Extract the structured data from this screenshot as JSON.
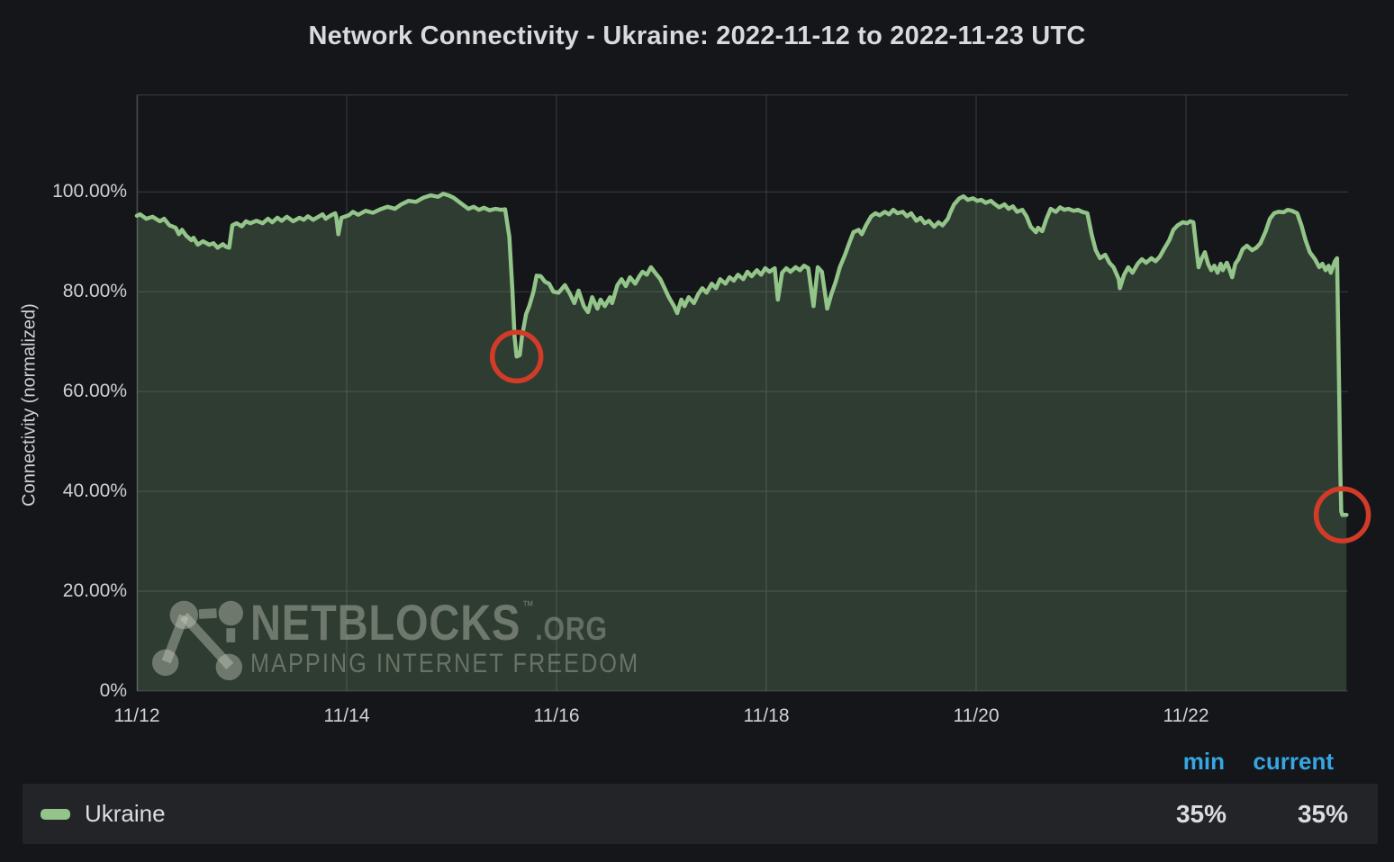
{
  "title": "Network Connectivity - Ukraine: 2022-11-12 to 2022-11-23 UTC",
  "colors": {
    "series_green": "#93c489",
    "annotation_red": "#d23b28",
    "legend_header_blue": "#36a6e4",
    "background": "#141619",
    "legend_row_bg": "#222427"
  },
  "watermark": {
    "brand": "NETBLOCKS",
    "tm": "TM",
    "suffix": ".ORG",
    "tagline": "MAPPING INTERNET FREEDOM",
    "icon": "network-nodes-icon"
  },
  "legend": {
    "col_min": "min",
    "col_current": "current",
    "series_name": "Ukraine",
    "min_value": "35%",
    "current_value": "35%"
  },
  "chart_data": {
    "type": "area",
    "title": "Network Connectivity - Ukraine: 2022-11-12 to 2022-11-23 UTC",
    "ylabel": "Connectivity (normalized)",
    "xlabel": "",
    "grid": true,
    "legend_position": "bottom",
    "y_axis_max": 119.5,
    "ylim": [
      0,
      119.5
    ],
    "x_range_days": [
      0,
      11.545
    ],
    "x_ticks": [
      {
        "day": 0,
        "label": "11/12"
      },
      {
        "day": 2,
        "label": "11/14"
      },
      {
        "day": 4,
        "label": "11/16"
      },
      {
        "day": 6,
        "label": "11/18"
      },
      {
        "day": 8,
        "label": "11/20"
      },
      {
        "day": 10,
        "label": "11/22"
      }
    ],
    "y_ticks": [
      {
        "pct": 100,
        "label": "100.00%"
      },
      {
        "pct": 80,
        "label": "80.00%"
      },
      {
        "pct": 60,
        "label": "60.00%"
      },
      {
        "pct": 40,
        "label": "40.00%"
      },
      {
        "pct": 20,
        "label": "20.00%"
      },
      {
        "pct": 0,
        "label": "0%"
      }
    ],
    "annotations": [
      {
        "type": "circle",
        "t": 3.62,
        "v": 67.0,
        "r": 27,
        "note": "dip to ~67%"
      },
      {
        "type": "circle",
        "t": 11.49,
        "v": 35.3,
        "r": 29,
        "note": "drop to 35%"
      }
    ],
    "series": [
      {
        "name": "Ukraine",
        "min": "35%",
        "current": "35%",
        "points": [
          [
            0,
            95.2
          ],
          [
            0.03,
            95.5
          ],
          [
            0.09,
            94.6
          ],
          [
            0.15,
            95
          ],
          [
            0.22,
            94.1
          ],
          [
            0.26,
            94.6
          ],
          [
            0.31,
            93.3
          ],
          [
            0.37,
            92.8
          ],
          [
            0.4,
            91.5
          ],
          [
            0.43,
            92.4
          ],
          [
            0.47,
            91.2
          ],
          [
            0.52,
            90.3
          ],
          [
            0.54,
            90.8
          ],
          [
            0.58,
            89.4
          ],
          [
            0.63,
            90.1
          ],
          [
            0.69,
            89.4
          ],
          [
            0.73,
            89.7
          ],
          [
            0.77,
            88.8
          ],
          [
            0.82,
            89.5
          ],
          [
            0.85,
            89
          ],
          [
            0.88,
            88.8
          ],
          [
            0.91,
            93.3
          ],
          [
            0.95,
            93.7
          ],
          [
            1,
            93.1
          ],
          [
            1.04,
            94.1
          ],
          [
            1.08,
            93.7
          ],
          [
            1.14,
            94.2
          ],
          [
            1.2,
            93.7
          ],
          [
            1.25,
            94.6
          ],
          [
            1.29,
            93.9
          ],
          [
            1.34,
            94.8
          ],
          [
            1.38,
            94.2
          ],
          [
            1.43,
            95
          ],
          [
            1.49,
            94.1
          ],
          [
            1.55,
            94.8
          ],
          [
            1.59,
            94.4
          ],
          [
            1.63,
            95.1
          ],
          [
            1.68,
            94.4
          ],
          [
            1.73,
            95
          ],
          [
            1.77,
            95.5
          ],
          [
            1.8,
            94.6
          ],
          [
            1.85,
            95.3
          ],
          [
            1.89,
            95.7
          ],
          [
            1.9,
            95
          ],
          [
            1.92,
            91.5
          ],
          [
            1.95,
            94.8
          ],
          [
            2.02,
            95.3
          ],
          [
            2.06,
            96
          ],
          [
            2.11,
            95.4
          ],
          [
            2.18,
            96.2
          ],
          [
            2.25,
            95.8
          ],
          [
            2.32,
            96.5
          ],
          [
            2.39,
            97
          ],
          [
            2.46,
            96.6
          ],
          [
            2.52,
            97.5
          ],
          [
            2.59,
            98.2
          ],
          [
            2.66,
            98
          ],
          [
            2.73,
            98.8
          ],
          [
            2.8,
            99.3
          ],
          [
            2.87,
            99
          ],
          [
            2.92,
            99.6
          ],
          [
            2.97,
            99.3
          ],
          [
            3.02,
            98.8
          ],
          [
            3.07,
            98
          ],
          [
            3.12,
            97.2
          ],
          [
            3.16,
            96.6
          ],
          [
            3.21,
            97
          ],
          [
            3.26,
            96.4
          ],
          [
            3.31,
            96.8
          ],
          [
            3.36,
            96.3
          ],
          [
            3.42,
            96.6
          ],
          [
            3.47,
            96.4
          ],
          [
            3.51,
            96.5
          ],
          [
            3.55,
            91
          ],
          [
            3.58,
            80
          ],
          [
            3.6,
            71
          ],
          [
            3.62,
            67
          ],
          [
            3.65,
            67.3
          ],
          [
            3.67,
            71
          ],
          [
            3.71,
            75.5
          ],
          [
            3.74,
            77.1
          ],
          [
            3.78,
            80
          ],
          [
            3.81,
            83.2
          ],
          [
            3.85,
            83.1
          ],
          [
            3.89,
            82
          ],
          [
            3.93,
            81.6
          ],
          [
            3.97,
            80
          ],
          [
            4.02,
            79.8
          ],
          [
            4.08,
            81.3
          ],
          [
            4.13,
            79.5
          ],
          [
            4.17,
            77.7
          ],
          [
            4.21,
            80.2
          ],
          [
            4.26,
            77.1
          ],
          [
            4.3,
            75.9
          ],
          [
            4.34,
            78.9
          ],
          [
            4.39,
            76.6
          ],
          [
            4.42,
            78.4
          ],
          [
            4.46,
            77.1
          ],
          [
            4.51,
            78.9
          ],
          [
            4.53,
            77.7
          ],
          [
            4.58,
            81.3
          ],
          [
            4.62,
            82.5
          ],
          [
            4.66,
            81.1
          ],
          [
            4.7,
            82.9
          ],
          [
            4.75,
            81.6
          ],
          [
            4.79,
            83.1
          ],
          [
            4.82,
            84
          ],
          [
            4.86,
            83.4
          ],
          [
            4.9,
            84.9
          ],
          [
            4.94,
            83.8
          ],
          [
            4.99,
            82.5
          ],
          [
            5.03,
            80.7
          ],
          [
            5.07,
            78.9
          ],
          [
            5.12,
            77.1
          ],
          [
            5.15,
            75.7
          ],
          [
            5.19,
            78.4
          ],
          [
            5.22,
            77.1
          ],
          [
            5.26,
            78.9
          ],
          [
            5.31,
            77.7
          ],
          [
            5.35,
            79.5
          ],
          [
            5.39,
            80.7
          ],
          [
            5.43,
            79.8
          ],
          [
            5.48,
            81.6
          ],
          [
            5.52,
            80.7
          ],
          [
            5.56,
            82.5
          ],
          [
            5.61,
            81.6
          ],
          [
            5.65,
            82.9
          ],
          [
            5.69,
            82.2
          ],
          [
            5.73,
            83.4
          ],
          [
            5.78,
            82.5
          ],
          [
            5.82,
            84
          ],
          [
            5.86,
            83.1
          ],
          [
            5.91,
            84.3
          ],
          [
            5.95,
            83.4
          ],
          [
            5.99,
            84.7
          ],
          [
            6.03,
            84
          ],
          [
            6.08,
            84.7
          ],
          [
            6.11,
            78.4
          ],
          [
            6.15,
            83.8
          ],
          [
            6.19,
            84.7
          ],
          [
            6.23,
            84
          ],
          [
            6.28,
            84.9
          ],
          [
            6.32,
            84.3
          ],
          [
            6.36,
            85.2
          ],
          [
            6.4,
            84.7
          ],
          [
            6.45,
            77.1
          ],
          [
            6.49,
            84.9
          ],
          [
            6.53,
            84
          ],
          [
            6.58,
            76.6
          ],
          [
            6.62,
            79.5
          ],
          [
            6.66,
            81.9
          ],
          [
            6.7,
            84.9
          ],
          [
            6.75,
            87.4
          ],
          [
            6.79,
            89.7
          ],
          [
            6.83,
            91.9
          ],
          [
            6.88,
            92.4
          ],
          [
            6.91,
            91.5
          ],
          [
            6.95,
            93.3
          ],
          [
            7,
            95.1
          ],
          [
            7.04,
            95.7
          ],
          [
            7.08,
            95.3
          ],
          [
            7.13,
            96
          ],
          [
            7.17,
            95.5
          ],
          [
            7.21,
            96.4
          ],
          [
            7.25,
            95.7
          ],
          [
            7.3,
            96
          ],
          [
            7.34,
            95.1
          ],
          [
            7.38,
            95.7
          ],
          [
            7.43,
            94.2
          ],
          [
            7.47,
            94.8
          ],
          [
            7.51,
            93.7
          ],
          [
            7.55,
            94.2
          ],
          [
            7.6,
            93
          ],
          [
            7.64,
            93.9
          ],
          [
            7.68,
            93.3
          ],
          [
            7.73,
            94.6
          ],
          [
            7.75,
            95.7
          ],
          [
            7.79,
            97.5
          ],
          [
            7.84,
            98.7
          ],
          [
            7.88,
            99.1
          ],
          [
            7.92,
            98.4
          ],
          [
            7.97,
            98.7
          ],
          [
            8.01,
            98.2
          ],
          [
            8.05,
            98.4
          ],
          [
            8.09,
            97.8
          ],
          [
            8.14,
            98.2
          ],
          [
            8.18,
            97.5
          ],
          [
            8.22,
            96.9
          ],
          [
            8.27,
            97.5
          ],
          [
            8.31,
            96.6
          ],
          [
            8.35,
            97.1
          ],
          [
            8.39,
            96
          ],
          [
            8.44,
            96.4
          ],
          [
            8.48,
            95.1
          ],
          [
            8.52,
            93
          ],
          [
            8.57,
            91.9
          ],
          [
            8.59,
            92.8
          ],
          [
            8.63,
            92.1
          ],
          [
            8.67,
            94.6
          ],
          [
            8.71,
            96.6
          ],
          [
            8.76,
            96
          ],
          [
            8.8,
            96.9
          ],
          [
            8.84,
            96.4
          ],
          [
            8.88,
            96.6
          ],
          [
            8.93,
            96.2
          ],
          [
            8.97,
            96.4
          ],
          [
            9.01,
            96
          ],
          [
            9.06,
            95.7
          ],
          [
            9.1,
            91.5
          ],
          [
            9.14,
            88.3
          ],
          [
            9.18,
            86.7
          ],
          [
            9.23,
            87.4
          ],
          [
            9.27,
            85.8
          ],
          [
            9.31,
            84.9
          ],
          [
            9.36,
            82.5
          ],
          [
            9.37,
            80.7
          ],
          [
            9.41,
            83.4
          ],
          [
            9.45,
            84.9
          ],
          [
            9.49,
            83.8
          ],
          [
            9.54,
            85.6
          ],
          [
            9.58,
            86.5
          ],
          [
            9.62,
            85.8
          ],
          [
            9.67,
            86.7
          ],
          [
            9.71,
            86.1
          ],
          [
            9.75,
            87
          ],
          [
            9.79,
            88.5
          ],
          [
            9.84,
            90.3
          ],
          [
            9.88,
            92.4
          ],
          [
            9.92,
            93.3
          ],
          [
            9.97,
            93.9
          ],
          [
            10.01,
            93.7
          ],
          [
            10.04,
            94.1
          ],
          [
            10.07,
            93.9
          ],
          [
            10.09,
            90.3
          ],
          [
            10.12,
            84.9
          ],
          [
            10.15,
            86.7
          ],
          [
            10.18,
            87.9
          ],
          [
            10.21,
            85.6
          ],
          [
            10.24,
            84.3
          ],
          [
            10.27,
            85.2
          ],
          [
            10.3,
            83.8
          ],
          [
            10.33,
            85.6
          ],
          [
            10.35,
            84.3
          ],
          [
            10.39,
            85.8
          ],
          [
            10.41,
            84.7
          ],
          [
            10.44,
            82.9
          ],
          [
            10.47,
            85.6
          ],
          [
            10.5,
            86.5
          ],
          [
            10.54,
            88.5
          ],
          [
            10.58,
            89.2
          ],
          [
            10.63,
            88.3
          ],
          [
            10.67,
            88.8
          ],
          [
            10.71,
            89.7
          ],
          [
            10.76,
            92.1
          ],
          [
            10.8,
            94.6
          ],
          [
            10.84,
            95.7
          ],
          [
            10.88,
            96
          ],
          [
            10.93,
            95.9
          ],
          [
            10.97,
            96.4
          ],
          [
            11.01,
            96.2
          ],
          [
            11.06,
            95.7
          ],
          [
            11.1,
            93.3
          ],
          [
            11.14,
            90.3
          ],
          [
            11.18,
            87.9
          ],
          [
            11.23,
            86.5
          ],
          [
            11.27,
            84.9
          ],
          [
            11.3,
            85.6
          ],
          [
            11.33,
            84.3
          ],
          [
            11.36,
            85.2
          ],
          [
            11.38,
            83.8
          ],
          [
            11.42,
            86.1
          ],
          [
            11.44,
            86.7
          ],
          [
            11.46,
            60
          ],
          [
            11.47,
            45
          ],
          [
            11.48,
            36
          ],
          [
            11.49,
            35.3
          ],
          [
            11.53,
            35.3
          ]
        ]
      }
    ]
  }
}
